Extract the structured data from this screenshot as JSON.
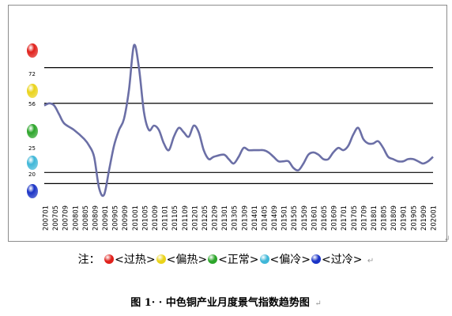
{
  "chart_data": {
    "type": "line",
    "title": "",
    "xlabel": "",
    "ylabel": "",
    "ylim": [
      12,
      97
    ],
    "threshold_lines": [
      72,
      56,
      25,
      20
    ],
    "signal_levels": [
      {
        "label": "",
        "color": "#e0201b"
      },
      {
        "label": "72",
        "color": "#ead31a"
      },
      {
        "label": "56",
        "color": "#2ca52a"
      },
      {
        "label": "25",
        "color": "#3fb7d8"
      },
      {
        "label": "20",
        "color": "#1a33c6"
      }
    ],
    "x_tick_labels": [
      "200701",
      "200705",
      "200709",
      "200801",
      "200805",
      "200809",
      "200901",
      "200905",
      "200909",
      "201001",
      "201005",
      "201009",
      "201101",
      "201105",
      "201109",
      "201201",
      "201205",
      "201209",
      "201301",
      "201305",
      "201309",
      "201401",
      "201405",
      "201409",
      "201501",
      "201505",
      "201509",
      "201601",
      "201605",
      "201609",
      "201701",
      "201705",
      "201709",
      "201801",
      "201805",
      "201809",
      "201901",
      "201905",
      "201909",
      "202001"
    ],
    "series": [
      {
        "name": "",
        "color": "#6b6fa6",
        "x": [
          "2007-01",
          "2007-03",
          "2007-05",
          "2007-07",
          "2007-09",
          "2008-01",
          "2008-05",
          "2008-07",
          "2008-09",
          "2008-11",
          "2009-01",
          "2009-03",
          "2009-05",
          "2009-07",
          "2009-09",
          "2009-11",
          "2010-01",
          "2010-03",
          "2010-05",
          "2010-07",
          "2010-09",
          "2010-11",
          "2011-01",
          "2011-03",
          "2011-05",
          "2011-07",
          "2011-09",
          "2011-11",
          "2012-01",
          "2012-03",
          "2012-05",
          "2012-07",
          "2012-09",
          "2013-01",
          "2013-03",
          "2013-05",
          "2013-07",
          "2013-09",
          "2013-11",
          "2014-01",
          "2014-03",
          "2014-05",
          "2014-07",
          "2014-09",
          "2014-11",
          "2015-01",
          "2015-03",
          "2015-05",
          "2015-07",
          "2015-09",
          "2015-11",
          "2016-01",
          "2016-03",
          "2016-05",
          "2016-07",
          "2016-09",
          "2016-11",
          "2017-01",
          "2017-03",
          "2017-05",
          "2017-07",
          "2017-09",
          "2017-11",
          "2018-01",
          "2018-03",
          "2018-05",
          "2018-07",
          "2018-09",
          "2018-11",
          "2019-01",
          "2019-03",
          "2019-05",
          "2019-07",
          "2019-09",
          "2019-11",
          "2020-01"
        ],
        "values": [
          55,
          56,
          55,
          51,
          47,
          44,
          40,
          37,
          32,
          18,
          15,
          26,
          37,
          44,
          49,
          62,
          82,
          72,
          52,
          44,
          46,
          44,
          38,
          35,
          41,
          45,
          43,
          41,
          46,
          43,
          35,
          31,
          32,
          33,
          31,
          29,
          32,
          36,
          35,
          35,
          35,
          35,
          34,
          32,
          30,
          30,
          30,
          27,
          26,
          29,
          33,
          34,
          33,
          31,
          31,
          34,
          36,
          35,
          37,
          42,
          45,
          40,
          38,
          38,
          39,
          36,
          32,
          31,
          30,
          30,
          31,
          31,
          30,
          29,
          30,
          32
        ]
      }
    ],
    "grid": false,
    "legend": "bottom"
  },
  "legend": {
    "note_label": "注：",
    "items": [
      {
        "color": "#e0201b",
        "label": "<过热>"
      },
      {
        "color": "#ead31a",
        "label": "<偏热>"
      },
      {
        "color": "#2ca52a",
        "label": "<正常>"
      },
      {
        "color": "#3fb7d8",
        "label": "<偏冷>"
      },
      {
        "color": "#1a33c6",
        "label": "<过冷>"
      }
    ],
    "return_mark": "↵"
  },
  "caption": {
    "text": "图 1· · 中色铜产业月度景气指数趋势图",
    "return_mark": "↵"
  }
}
